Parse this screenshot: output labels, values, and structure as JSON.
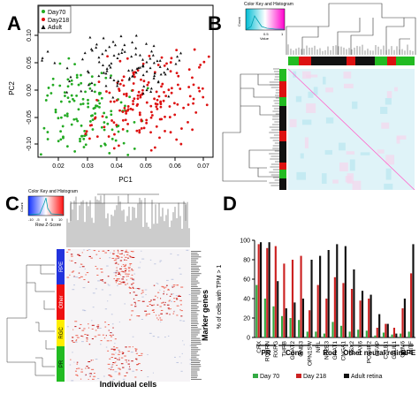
{
  "panelA": {
    "letter": "A",
    "xlabel": "PC1",
    "ylabel": "PC2",
    "legend": [
      "Day70",
      "Day218",
      "Adult"
    ],
    "colors": {
      "day70": "#22aa22",
      "day218": "#dd1111",
      "adult": "#111111"
    },
    "xticks": [
      "0.02",
      "0.03",
      "0.04",
      "0.05",
      "0.06",
      "0.07"
    ],
    "yticks": [
      "0.10",
      "0.05",
      "0.00",
      "-0.05",
      "-0.10"
    ]
  },
  "panelB": {
    "letter": "B",
    "colorkey_title": "Color Key and Histogram",
    "colorkey_count": "Count",
    "colorkey_ticks": [
      "0.5",
      "1"
    ],
    "colorkey_axis": "Value"
  },
  "panelC": {
    "letter": "C",
    "colorkey_title": "Color Key and Histogram",
    "colorkey_count": "Count",
    "colorkey_ticks": [
      "-10",
      "-5",
      "0",
      "5",
      "10"
    ],
    "colorkey_axis": "Row Z-Score",
    "row_groups": [
      "RPE",
      "Other",
      "RGC",
      "PR"
    ],
    "xlabel": "Individual cells",
    "ylabel": "Marker genes"
  },
  "panelD": {
    "letter": "D",
    "ylabel": "% of cells with TPM > 1",
    "yticks": [
      "0",
      "20",
      "40",
      "60",
      "80",
      "100"
    ],
    "legend": [
      "Day 70",
      "Day 218",
      "Adult retina"
    ],
    "group_labels": [
      "PR",
      "Cone",
      "Rod",
      "Other neural retina",
      "RPE"
    ],
    "chart_data": {
      "type": "bar",
      "categories": [
        "CRX",
        "RCVRN",
        "RXRG",
        "THRB",
        "GNAT2",
        "GNB3",
        "OPN1SW",
        "NRL",
        "NR2E3",
        "GNAT1",
        "CNGA1",
        "VSX2",
        "PAX6",
        "POU4F2",
        "GFAP",
        "CALB1",
        "GLUL1",
        "GRM6",
        "MITF"
      ],
      "ylim": [
        0,
        100
      ],
      "series": [
        {
          "name": "Day 70",
          "color": "#33aa44",
          "values": [
            54,
            40,
            32,
            22,
            20,
            18,
            6,
            6,
            4,
            16,
            12,
            6,
            8,
            7,
            2,
            5,
            3,
            4,
            6
          ]
        },
        {
          "name": "Day 218",
          "color": "#cc2222",
          "values": [
            96,
            92,
            94,
            76,
            80,
            84,
            28,
            54,
            40,
            62,
            56,
            50,
            38,
            40,
            10,
            14,
            10,
            30,
            66
          ]
        },
        {
          "name": "Adult retina",
          "color": "#111111",
          "values": [
            98,
            98,
            58,
            30,
            36,
            40,
            80,
            84,
            90,
            96,
            94,
            70,
            48,
            44,
            24,
            14,
            4,
            40,
            96
          ]
        }
      ]
    }
  }
}
